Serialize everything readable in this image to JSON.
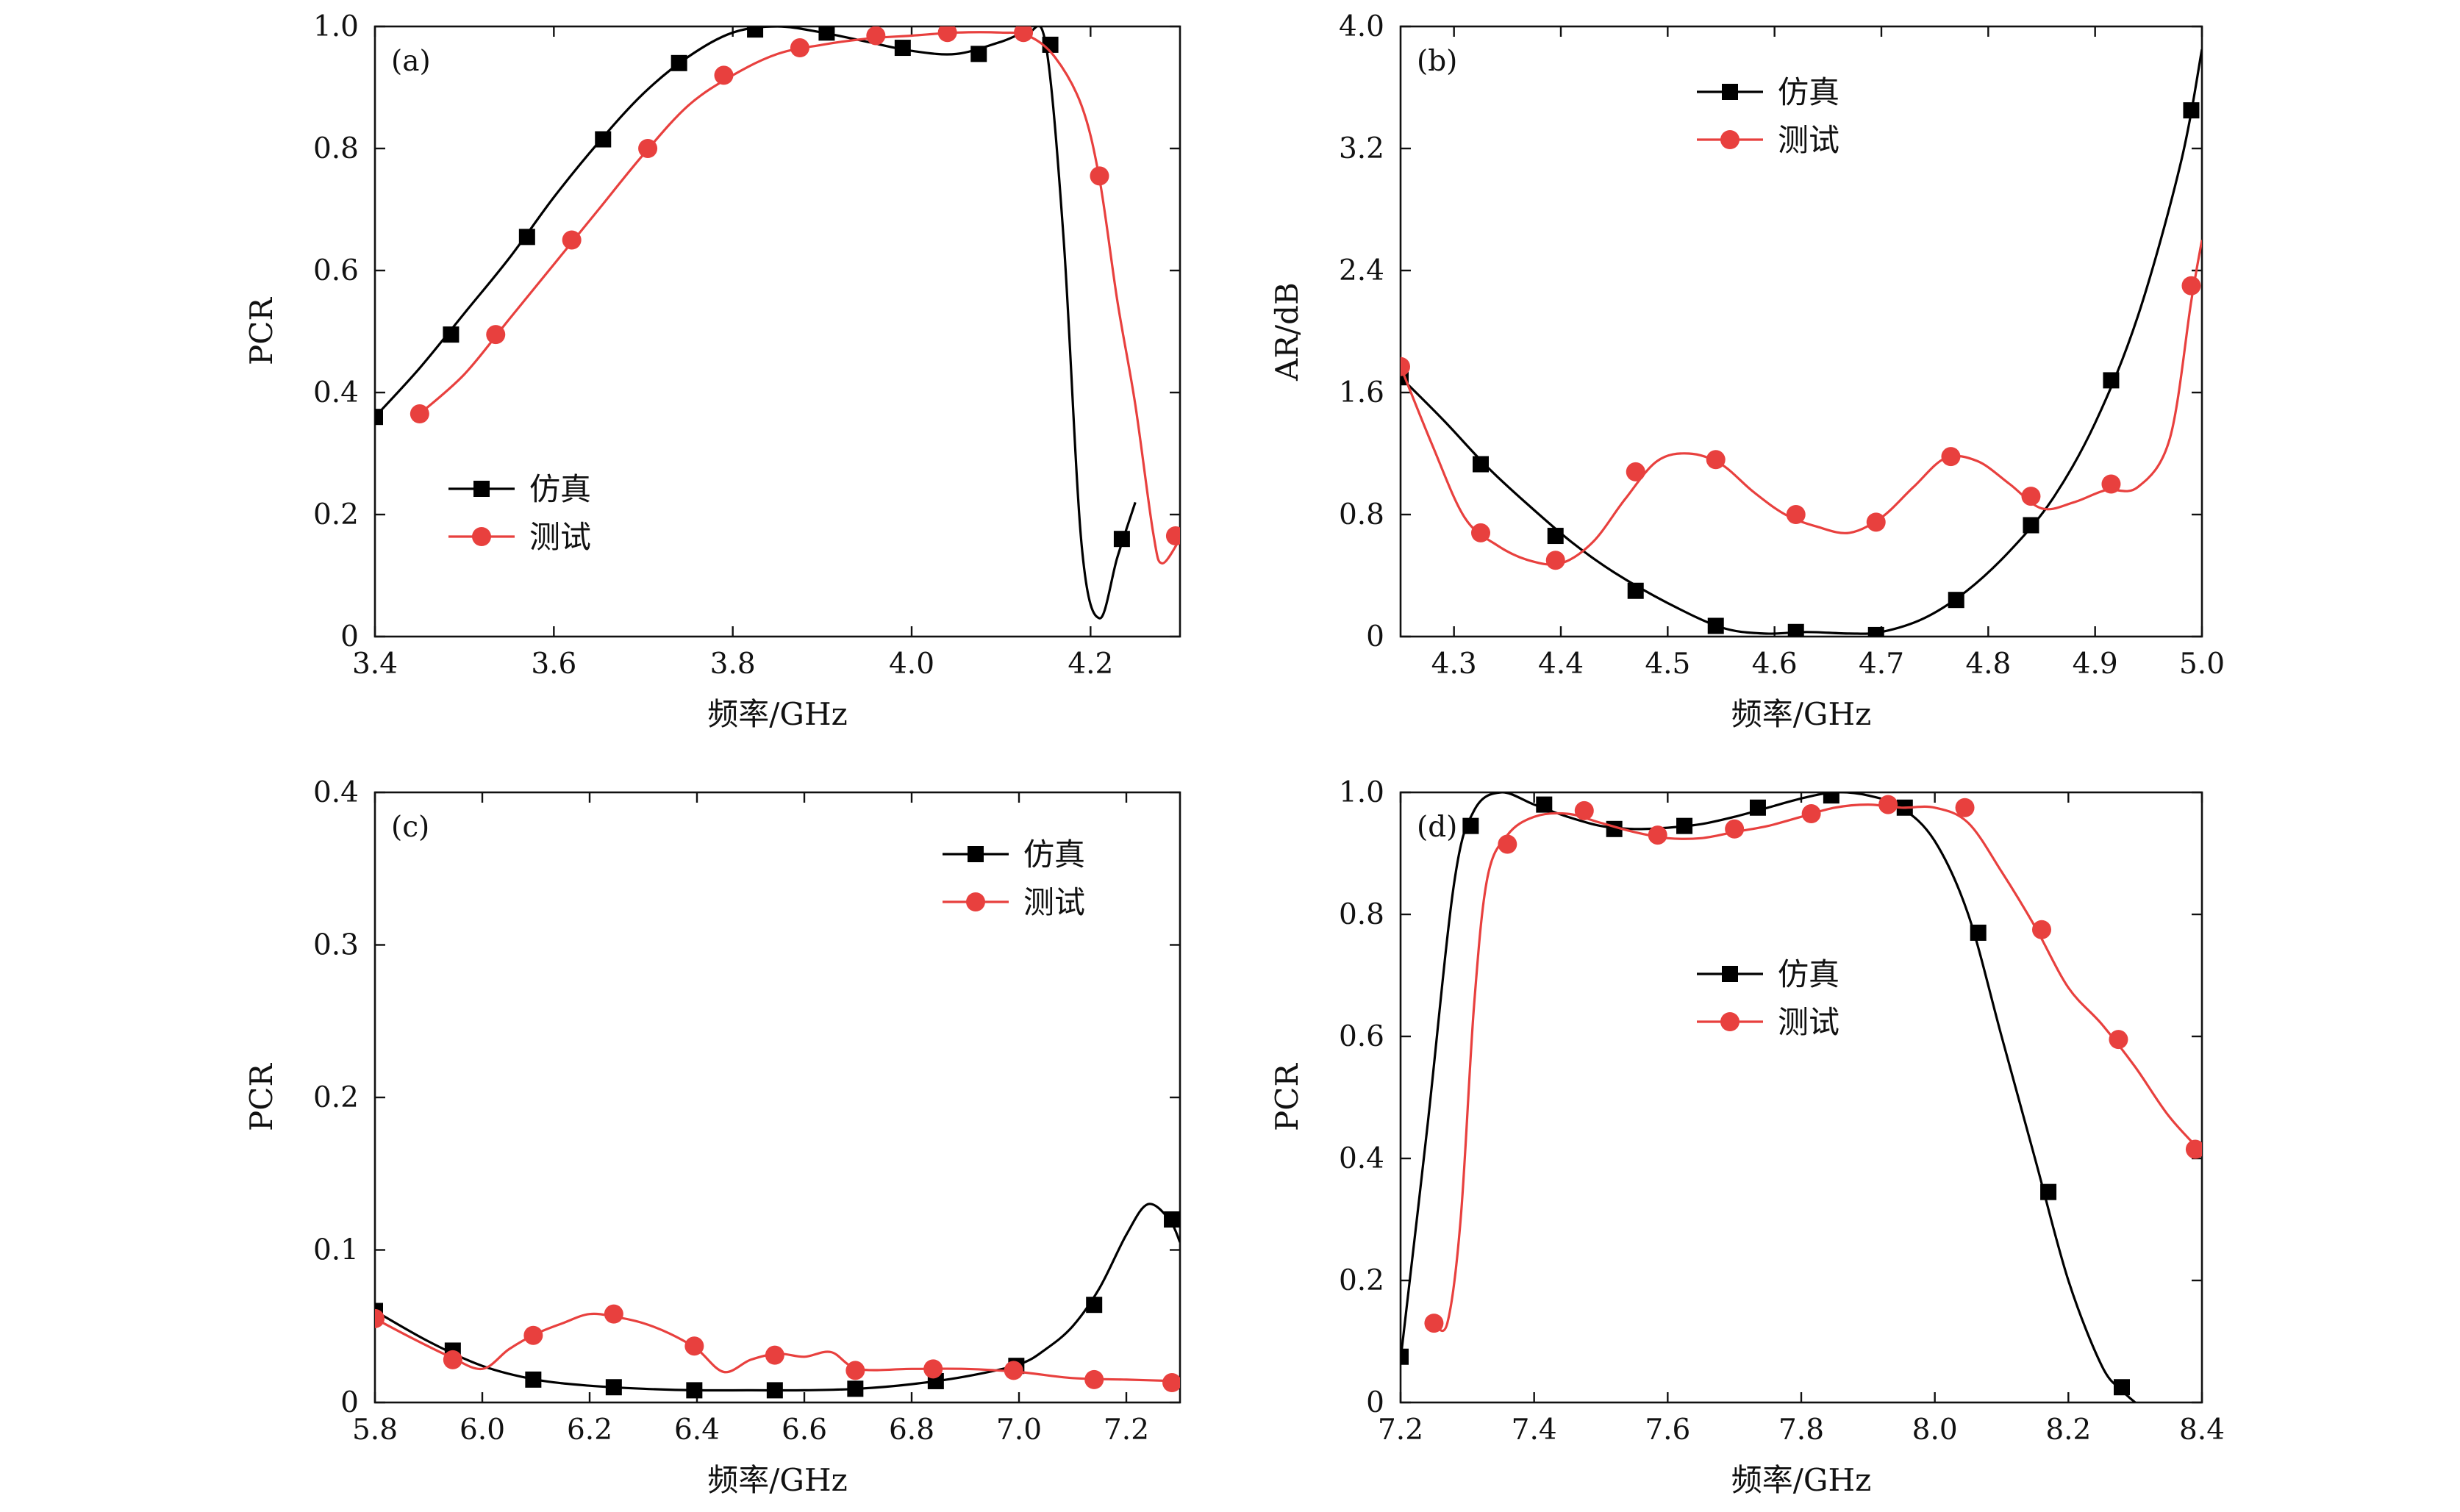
{
  "chart_data": [
    {
      "type": "line",
      "panel_label": "(a)",
      "xlabel": "频率/GHz",
      "ylabel": "PCR",
      "xlim": [
        3.4,
        4.3
      ],
      "ylim": [
        0,
        1.0
      ],
      "xticks": [
        3.4,
        3.6,
        3.8,
        4.0,
        4.2
      ],
      "xtick_labels": [
        "3.4",
        "3.6",
        "3.8",
        "4.0",
        "4.2"
      ],
      "yticks": [
        0,
        0.2,
        0.4,
        0.6,
        0.8,
        1.0
      ],
      "ytick_labels": [
        "0",
        "0.2",
        "0.4",
        "0.6",
        "0.8",
        "1.0"
      ],
      "legend_position": "lower-left",
      "series": [
        {
          "name": "仿真",
          "color": "#000000",
          "marker": "square",
          "x": [
            3.4,
            3.45,
            3.5,
            3.55,
            3.6,
            3.65,
            3.7,
            3.75,
            3.8,
            3.85,
            3.9,
            3.95,
            4.0,
            4.05,
            4.1,
            4.13,
            4.15,
            4.17,
            4.19,
            4.21,
            4.23,
            4.25
          ],
          "y": [
            0.36,
            0.44,
            0.53,
            0.62,
            0.72,
            0.81,
            0.89,
            0.95,
            0.99,
            1.0,
            0.99,
            0.975,
            0.96,
            0.955,
            0.975,
            0.99,
            0.97,
            0.65,
            0.15,
            0.03,
            0.13,
            0.22
          ],
          "marker_x": [
            3.4,
            3.485,
            3.57,
            3.655,
            3.74,
            3.825,
            3.905,
            3.99,
            4.075,
            4.155,
            4.235
          ],
          "marker_y": [
            0.36,
            0.495,
            0.655,
            0.815,
            0.94,
            0.995,
            0.99,
            0.965,
            0.955,
            0.97,
            0.16
          ]
        },
        {
          "name": "测试",
          "color": "#e8403e",
          "marker": "circle",
          "x": [
            3.45,
            3.5,
            3.55,
            3.6,
            3.65,
            3.7,
            3.75,
            3.8,
            3.85,
            3.9,
            3.95,
            4.0,
            4.05,
            4.1,
            4.13,
            4.16,
            4.19,
            4.21,
            4.23,
            4.25,
            4.27,
            4.28,
            4.3
          ],
          "y": [
            0.365,
            0.43,
            0.52,
            0.61,
            0.7,
            0.79,
            0.87,
            0.92,
            0.955,
            0.97,
            0.98,
            0.985,
            0.99,
            0.99,
            0.985,
            0.95,
            0.87,
            0.75,
            0.55,
            0.38,
            0.17,
            0.12,
            0.16
          ],
          "marker_x": [
            3.45,
            3.535,
            3.62,
            3.705,
            3.79,
            3.875,
            3.96,
            4.04,
            4.125,
            4.21,
            4.295
          ],
          "marker_y": [
            0.365,
            0.495,
            0.65,
            0.8,
            0.92,
            0.965,
            0.985,
            0.99,
            0.99,
            0.755,
            0.165
          ]
        }
      ]
    },
    {
      "type": "line",
      "panel_label": "(b)",
      "xlabel": "频率/GHz",
      "ylabel": "AR/dB",
      "xlim": [
        4.25,
        5.0
      ],
      "ylim": [
        0,
        4.0
      ],
      "xticks": [
        4.3,
        4.4,
        4.5,
        4.6,
        4.7,
        4.8,
        4.9,
        5.0
      ],
      "xtick_labels": [
        "4.3",
        "4.4",
        "4.5",
        "4.6",
        "4.7",
        "4.8",
        "4.9",
        "5.0"
      ],
      "yticks": [
        0,
        0.8,
        1.6,
        2.4,
        3.2,
        4.0
      ],
      "ytick_labels": [
        "0",
        "0.8",
        "1.6",
        "2.4",
        "3.2",
        "4.0"
      ],
      "legend_position": "top-center",
      "series": [
        {
          "name": "仿真",
          "color": "#000000",
          "marker": "square",
          "x": [
            4.25,
            4.29,
            4.33,
            4.37,
            4.41,
            4.45,
            4.5,
            4.55,
            4.59,
            4.63,
            4.67,
            4.7,
            4.74,
            4.78,
            4.82,
            4.86,
            4.9,
            4.94,
            4.98,
            5.0
          ],
          "y": [
            1.7,
            1.42,
            1.12,
            0.86,
            0.62,
            0.42,
            0.22,
            0.06,
            0.02,
            0.03,
            0.02,
            0.03,
            0.12,
            0.3,
            0.56,
            0.9,
            1.4,
            2.1,
            3.1,
            3.85
          ],
          "marker_x": [
            4.25,
            4.325,
            4.395,
            4.47,
            4.545,
            4.62,
            4.695,
            4.77,
            4.84,
            4.915,
            4.99
          ],
          "marker_y": [
            1.7,
            1.13,
            0.66,
            0.3,
            0.07,
            0.03,
            0.01,
            0.24,
            0.73,
            1.68,
            3.45
          ]
        },
        {
          "name": "测试",
          "color": "#e8403e",
          "marker": "circle",
          "x": [
            4.25,
            4.28,
            4.31,
            4.34,
            4.37,
            4.4,
            4.43,
            4.46,
            4.49,
            4.52,
            4.55,
            4.58,
            4.61,
            4.64,
            4.67,
            4.7,
            4.73,
            4.76,
            4.79,
            4.82,
            4.85,
            4.88,
            4.91,
            4.94,
            4.97,
            4.99,
            5.0
          ],
          "y": [
            1.77,
            1.25,
            0.78,
            0.6,
            0.5,
            0.48,
            0.62,
            0.9,
            1.15,
            1.2,
            1.13,
            0.95,
            0.8,
            0.72,
            0.68,
            0.78,
            0.98,
            1.17,
            1.15,
            1.0,
            0.84,
            0.88,
            0.96,
            0.98,
            1.3,
            2.2,
            2.6
          ],
          "marker_x": [
            4.25,
            4.325,
            4.395,
            4.47,
            4.545,
            4.62,
            4.695,
            4.765,
            4.84,
            4.915,
            4.99
          ],
          "marker_y": [
            1.77,
            0.68,
            0.5,
            1.08,
            1.16,
            0.8,
            0.75,
            1.18,
            0.92,
            1.0,
            2.3
          ]
        }
      ]
    },
    {
      "type": "line",
      "panel_label": "(c)",
      "xlabel": "频率/GHz",
      "ylabel": "PCR",
      "xlim": [
        5.8,
        7.3
      ],
      "ylim": [
        0,
        0.4
      ],
      "xticks": [
        5.8,
        6.0,
        6.2,
        6.4,
        6.6,
        6.8,
        7.0,
        7.2
      ],
      "xtick_labels": [
        "5.8",
        "6.0",
        "6.2",
        "6.4",
        "6.6",
        "6.8",
        "7.0",
        "7.2"
      ],
      "yticks": [
        0,
        0.1,
        0.2,
        0.3,
        0.4
      ],
      "ytick_labels": [
        "0",
        "0.1",
        "0.2",
        "0.3",
        "0.4"
      ],
      "legend_position": "top-right",
      "series": [
        {
          "name": "仿真",
          "color": "#000000",
          "marker": "square",
          "x": [
            5.8,
            5.9,
            6.0,
            6.1,
            6.2,
            6.3,
            6.4,
            6.5,
            6.6,
            6.7,
            6.8,
            6.9,
            7.0,
            7.05,
            7.1,
            7.15,
            7.2,
            7.24,
            7.28,
            7.3
          ],
          "y": [
            0.06,
            0.04,
            0.024,
            0.015,
            0.011,
            0.009,
            0.008,
            0.008,
            0.008,
            0.009,
            0.012,
            0.017,
            0.025,
            0.035,
            0.05,
            0.075,
            0.11,
            0.13,
            0.12,
            0.105
          ],
          "marker_x": [
            5.8,
            5.945,
            6.095,
            6.245,
            6.395,
            6.545,
            6.695,
            6.845,
            6.995,
            7.14,
            7.285
          ],
          "marker_y": [
            0.06,
            0.034,
            0.015,
            0.01,
            0.008,
            0.008,
            0.009,
            0.014,
            0.024,
            0.064,
            0.12
          ]
        },
        {
          "name": "测试",
          "color": "#e8403e",
          "marker": "circle",
          "x": [
            5.8,
            5.87,
            5.94,
            6.0,
            6.05,
            6.1,
            6.15,
            6.2,
            6.25,
            6.3,
            6.35,
            6.4,
            6.45,
            6.5,
            6.55,
            6.6,
            6.65,
            6.7,
            6.8,
            6.9,
            7.0,
            7.1,
            7.2,
            7.3
          ],
          "y": [
            0.055,
            0.042,
            0.03,
            0.022,
            0.035,
            0.045,
            0.052,
            0.058,
            0.056,
            0.052,
            0.045,
            0.035,
            0.02,
            0.028,
            0.032,
            0.03,
            0.033,
            0.022,
            0.022,
            0.022,
            0.02,
            0.016,
            0.015,
            0.014
          ],
          "marker_x": [
            5.8,
            5.945,
            6.095,
            6.245,
            6.395,
            6.545,
            6.695,
            6.84,
            6.99,
            7.14,
            7.285
          ],
          "marker_y": [
            0.055,
            0.028,
            0.044,
            0.058,
            0.037,
            0.031,
            0.021,
            0.022,
            0.021,
            0.015,
            0.013
          ]
        }
      ]
    },
    {
      "type": "line",
      "panel_label": "(d)",
      "xlabel": "频率/GHz",
      "ylabel": "PCR",
      "xlim": [
        7.2,
        8.4
      ],
      "ylim": [
        0,
        1.0
      ],
      "xticks": [
        7.2,
        7.4,
        7.6,
        7.8,
        8.0,
        8.2,
        8.4
      ],
      "xtick_labels": [
        "7.2",
        "7.4",
        "7.6",
        "7.8",
        "8.0",
        "8.2",
        "8.4"
      ],
      "yticks": [
        0,
        0.2,
        0.4,
        0.6,
        0.8,
        1.0
      ],
      "ytick_labels": [
        "0",
        "0.2",
        "0.4",
        "0.6",
        "0.8",
        "1.0"
      ],
      "legend_position": "center",
      "series": [
        {
          "name": "仿真",
          "color": "#000000",
          "marker": "square",
          "x": [
            7.2,
            7.24,
            7.28,
            7.31,
            7.35,
            7.4,
            7.45,
            7.5,
            7.55,
            7.6,
            7.65,
            7.7,
            7.75,
            7.8,
            7.85,
            7.9,
            7.95,
            8.0,
            8.05,
            8.1,
            8.15,
            8.2,
            8.25,
            8.28,
            8.3
          ],
          "y": [
            0.07,
            0.45,
            0.85,
            0.97,
            1.0,
            0.98,
            0.96,
            0.945,
            0.94,
            0.942,
            0.948,
            0.96,
            0.975,
            0.99,
            1.0,
            0.995,
            0.975,
            0.92,
            0.8,
            0.6,
            0.4,
            0.2,
            0.06,
            0.02,
            0.0
          ],
          "marker_x": [
            7.2,
            7.305,
            7.415,
            7.52,
            7.625,
            7.735,
            7.845,
            7.955,
            8.065,
            8.17,
            8.28
          ],
          "marker_y": [
            0.075,
            0.945,
            0.98,
            0.94,
            0.945,
            0.975,
            0.995,
            0.975,
            0.77,
            0.345,
            0.025
          ]
        },
        {
          "name": "测试",
          "color": "#e8403e",
          "marker": "circle",
          "x": [
            7.25,
            7.27,
            7.29,
            7.31,
            7.33,
            7.36,
            7.4,
            7.45,
            7.5,
            7.55,
            7.6,
            7.65,
            7.7,
            7.75,
            7.8,
            7.85,
            7.9,
            7.95,
            8.0,
            8.05,
            8.1,
            8.15,
            8.2,
            8.25,
            8.3,
            8.35,
            8.4
          ],
          "y": [
            0.13,
            0.13,
            0.3,
            0.65,
            0.86,
            0.93,
            0.96,
            0.965,
            0.95,
            0.935,
            0.925,
            0.925,
            0.935,
            0.945,
            0.96,
            0.975,
            0.98,
            0.975,
            0.975,
            0.95,
            0.87,
            0.78,
            0.68,
            0.62,
            0.55,
            0.47,
            0.41
          ],
          "marker_x": [
            7.25,
            7.36,
            7.475,
            7.585,
            7.7,
            7.815,
            7.93,
            8.045,
            8.16,
            8.275,
            8.39
          ],
          "marker_y": [
            0.13,
            0.915,
            0.97,
            0.93,
            0.94,
            0.965,
            0.98,
            0.975,
            0.775,
            0.595,
            0.415
          ]
        }
      ]
    }
  ]
}
